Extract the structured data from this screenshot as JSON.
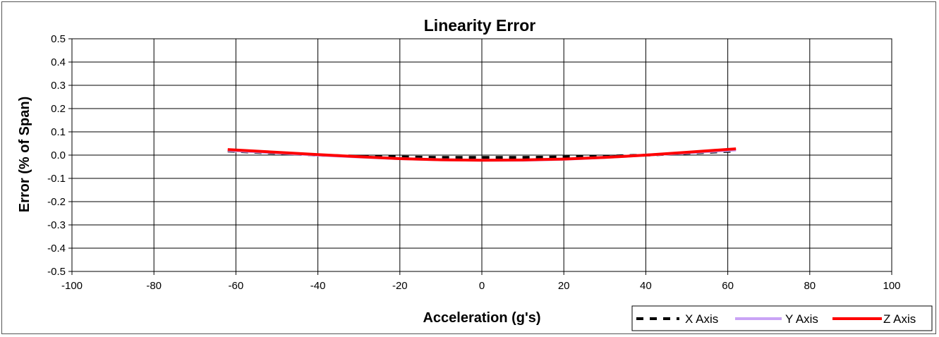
{
  "chart_data": {
    "type": "line",
    "title": "Linearity Error",
    "xlabel": "Acceleration (g's)",
    "ylabel": "Error (% of Span)",
    "xlim": [
      -100,
      100
    ],
    "ylim": [
      -0.5,
      0.5
    ],
    "x_ticks": [
      -100,
      -80,
      -60,
      -40,
      -20,
      0,
      20,
      40,
      60,
      80,
      100
    ],
    "x_tick_labels": [
      "-100",
      "-80",
      "-60",
      "-40",
      "-20",
      "0",
      "20",
      "40",
      "60",
      "80",
      "100"
    ],
    "y_ticks": [
      0.5,
      0.4,
      0.3,
      0.2,
      0.1,
      0.0,
      -0.1,
      -0.2,
      -0.3,
      -0.4,
      -0.5
    ],
    "y_tick_labels": [
      "0.5",
      "0.4",
      "0.3",
      "0.2",
      "0.1",
      "0.0",
      "-0.1",
      "-0.2",
      "-0.3",
      "-0.4",
      "-0.5"
    ],
    "grid": true,
    "legend_position": "bottom-right",
    "series": [
      {
        "name": "X Axis",
        "color": "#000000",
        "style": "dashed",
        "x": [
          -62,
          -50,
          -40,
          -30,
          -20,
          -10,
          0,
          10,
          20,
          30,
          40,
          50,
          62
        ],
        "y": [
          0.018,
          0.008,
          0.0,
          -0.005,
          -0.008,
          -0.01,
          -0.01,
          -0.01,
          -0.008,
          -0.005,
          0.0,
          0.008,
          0.018
        ]
      },
      {
        "name": "Y Axis",
        "color": "#c9a3f5",
        "style": "solid",
        "x": [
          -62,
          -50,
          -40,
          -30,
          -20,
          -10,
          0,
          10,
          20,
          30,
          40,
          50,
          62
        ],
        "y": [
          0.02,
          0.01,
          0.0,
          -0.008,
          -0.015,
          -0.02,
          -0.022,
          -0.022,
          -0.018,
          -0.01,
          0.0,
          0.01,
          0.022
        ]
      },
      {
        "name": "Z Axis",
        "color": "#ff0000",
        "style": "solid",
        "x": [
          -62,
          -50,
          -40,
          -30,
          -20,
          -10,
          0,
          10,
          20,
          30,
          40,
          50,
          62
        ],
        "y": [
          0.024,
          0.012,
          0.002,
          -0.007,
          -0.015,
          -0.02,
          -0.022,
          -0.021,
          -0.017,
          -0.01,
          0.0,
          0.012,
          0.027
        ]
      }
    ]
  }
}
